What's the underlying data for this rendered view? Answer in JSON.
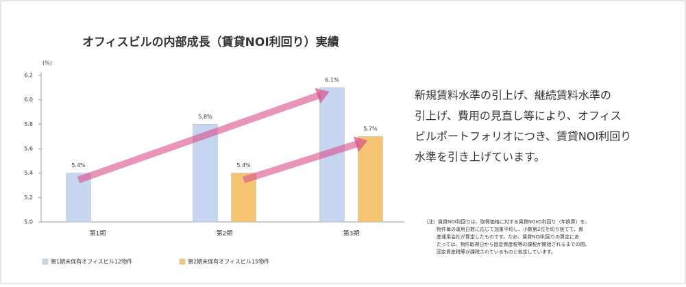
{
  "chart_data": {
    "type": "bar",
    "title": "オフィスビルの内部成長（賃貸NOI利回り）実績",
    "y_label": "(%)",
    "categories": [
      "第1期",
      "第2期",
      "第3期"
    ],
    "series": [
      {
        "name": "第1期末保有オフィスビル12物件",
        "color": "#c6d5f0",
        "values": [
          5.4,
          5.8,
          6.1
        ],
        "value_labels": [
          "5.4%",
          "5.8%",
          "6.1%"
        ]
      },
      {
        "name": "第2期末保有オフィスビル15物件",
        "color": "#f4c472",
        "values": [
          null,
          5.4,
          5.7
        ],
        "value_labels": [
          null,
          "5.4%",
          "5.7%"
        ]
      }
    ],
    "ylim": [
      5.0,
      6.2
    ],
    "yticks": [
      {
        "value": 5,
        "label": "5.0"
      },
      5.2,
      5.4,
      5.6,
      5.8,
      {
        "value": 6,
        "label": "6.0"
      },
      6.2
    ],
    "legend": "bottom"
  },
  "description": {
    "lines": [
      "新規賃料水準の引上げ、継続賃料水準の",
      "引上げ、費用の見直し等により、オフィス",
      "ビルポートフォリオにつき、賃貸NOI利回り",
      "水準を引き上げています。"
    ]
  },
  "note": {
    "lines": [
      "（注）賃貸NOI利回りは、取得価格に対する賃貸NOIの利回り（年換算）を、",
      "物件毎の運用日数に応じて加重平均し、小数第2位を切り捨てて、資",
      "産運用会社が算定したものです。なお、賃貸NOI利回りの算定にあ",
      "たっては、物件取得日から固定資産税等の課税が開始されるまでの間、",
      "固定資産税等が課税されているものと仮定しています。"
    ]
  }
}
